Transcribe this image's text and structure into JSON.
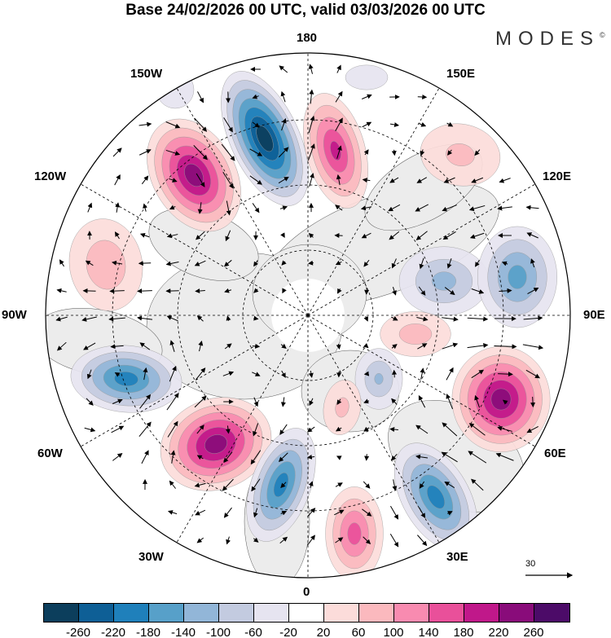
{
  "title": "Base 24/02/2026 00 UTC, valid 03/03/2026 00 UTC",
  "logo": {
    "text": "MODES",
    "mark": "©"
  },
  "longitude_labels": {
    "n": "180",
    "ne1": "150E",
    "ne2": "120E",
    "e": "90E",
    "se1": "60E",
    "se2": "30E",
    "s": "0",
    "sw1": "30W",
    "sw2": "60W",
    "w": "90W",
    "nw1": "120W",
    "nw2": "150W"
  },
  "reference_vector": {
    "label": "30"
  },
  "colorbar": {
    "colors": [
      "#0c3e5c",
      "#0e5f96",
      "#1f80bb",
      "#57a0c9",
      "#92b6d8",
      "#c3cbe0",
      "#e6e4f0",
      "#ffffff",
      "#fcdcda",
      "#fbb9be",
      "#f88bb0",
      "#e9509a",
      "#c0188a",
      "#890c7a",
      "#4c0b68"
    ],
    "ticks": [
      "-260",
      "-220",
      "-180",
      "-140",
      "-100",
      "-60",
      "-20",
      "20",
      "60",
      "100",
      "140",
      "180",
      "220",
      "260"
    ]
  }
}
